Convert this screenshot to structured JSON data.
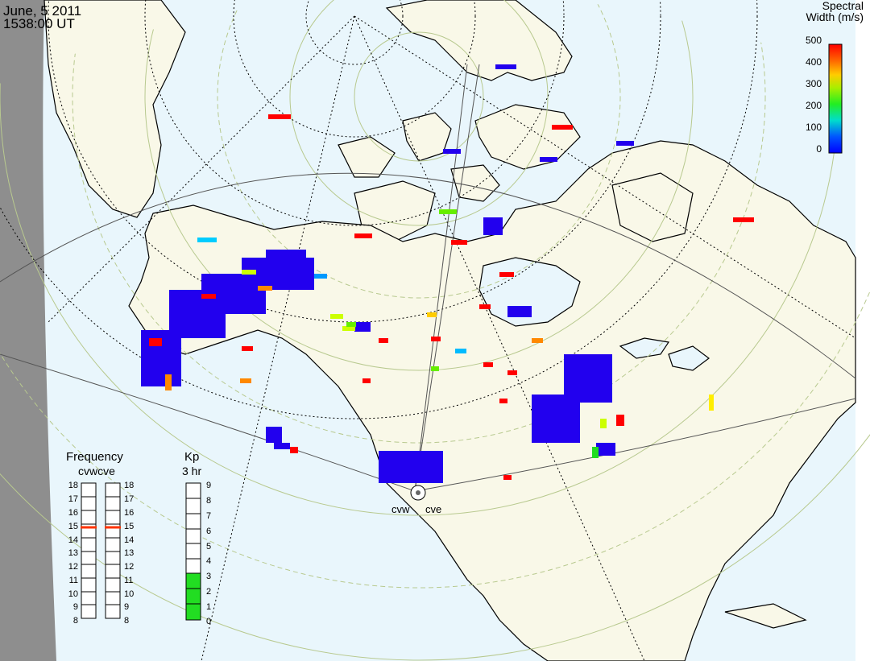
{
  "header": {
    "date": "June, 5 2011",
    "time": "1538:00 UT"
  },
  "colorbar": {
    "title_line1": "Spectral",
    "title_line2": "Width (m/s)",
    "ticks": [
      "500",
      "400",
      "300",
      "200",
      "100",
      "0"
    ],
    "colors": [
      "#0000ff",
      "#0088ff",
      "#00ccff",
      "#00ff88",
      "#33ff00",
      "#ccff00",
      "#ffcc00",
      "#ff8800",
      "#ff2200",
      "#ff0000"
    ]
  },
  "frequency": {
    "title": "Frequency",
    "radars": "cvwcve",
    "ticks": [
      "18",
      "17",
      "16",
      "15",
      "14",
      "13",
      "12",
      "11",
      "10",
      "9",
      "8"
    ],
    "cvw_mhz": 14.8,
    "cve_mhz": 14.8
  },
  "kp": {
    "title": "Kp",
    "subtitle": "3 hr",
    "ticks": [
      "9",
      "8",
      "7",
      "6",
      "5",
      "4",
      "3",
      "2",
      "1",
      "0"
    ],
    "value": 3
  },
  "radars": {
    "west": "cvw",
    "east": "cve"
  },
  "colors": {
    "ocean": "#e9f6fc",
    "land": "#f9f8e8",
    "outside": "#8e8e8e",
    "grid": "#b8c98f",
    "low_width": "#2200ee",
    "kp_fill": "#22dd22",
    "freq_marker": "#ff3300"
  }
}
